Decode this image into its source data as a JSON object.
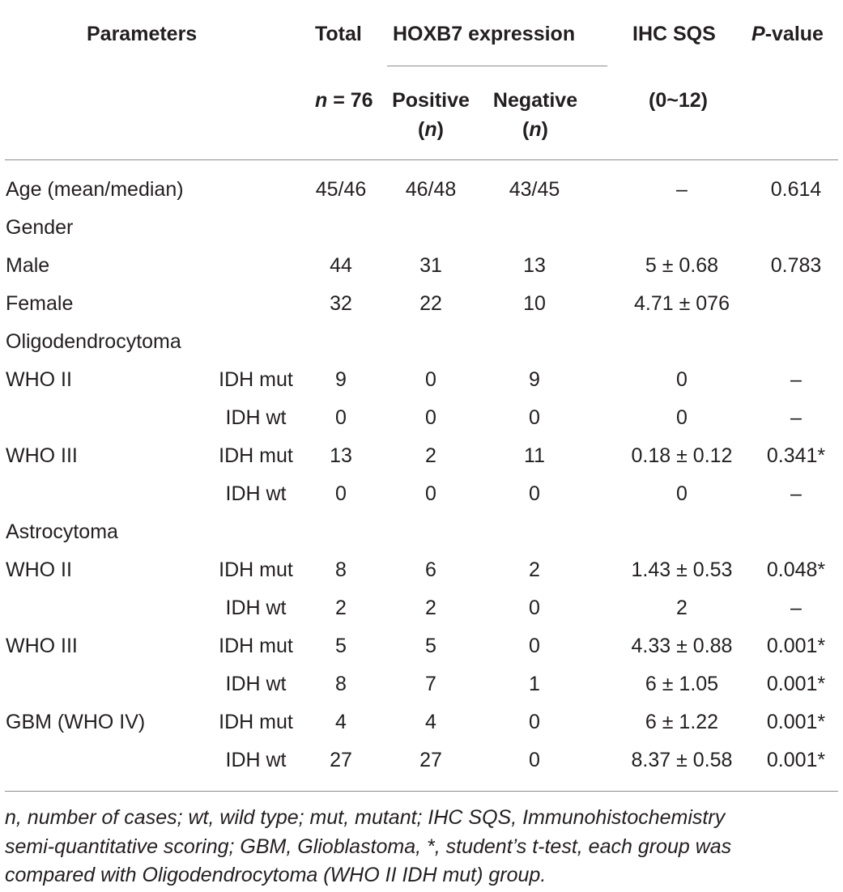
{
  "header": {
    "parameters": "Parameters",
    "total": "Total",
    "hoxb7": "HOXB7 expression",
    "ihc_sqs": "IHC SQS",
    "p_italic": "P",
    "p_rest": "-value",
    "n_italic": "n",
    "n_rest": " = 76",
    "positive": "Positive",
    "negative": "Negative",
    "paren_open": "(",
    "paren_close": ")",
    "pos_n": "n",
    "neg_n": "n",
    "range": "(0~12)"
  },
  "rows": [
    {
      "param": "Age (mean/median)",
      "sub": "",
      "total": "45/46",
      "pos": "46/48",
      "neg": "43/45",
      "ihc": "–",
      "p": "0.614"
    },
    {
      "param": "Gender",
      "sub": "",
      "total": "",
      "pos": "",
      "neg": "",
      "ihc": "",
      "p": ""
    },
    {
      "param": "Male",
      "sub": "",
      "total": "44",
      "pos": "31",
      "neg": "13",
      "ihc": "5 ± 0.68",
      "p": "0.783"
    },
    {
      "param": "Female",
      "sub": "",
      "total": "32",
      "pos": "22",
      "neg": "10",
      "ihc": "4.71 ± 076",
      "p": ""
    },
    {
      "param": "Oligodendrocytoma",
      "sub": "",
      "total": "",
      "pos": "",
      "neg": "",
      "ihc": "",
      "p": ""
    },
    {
      "param": "WHO II",
      "sub": "IDH mut",
      "total": "9",
      "pos": "0",
      "neg": "9",
      "ihc": "0",
      "p": "–"
    },
    {
      "param": "",
      "sub": "IDH wt",
      "total": "0",
      "pos": "0",
      "neg": "0",
      "ihc": "0",
      "p": "–"
    },
    {
      "param": "WHO III",
      "sub": "IDH mut",
      "total": "13",
      "pos": "2",
      "neg": "11",
      "ihc": "0.18 ± 0.12",
      "p": "0.341*"
    },
    {
      "param": "",
      "sub": "IDH wt",
      "total": "0",
      "pos": "0",
      "neg": "0",
      "ihc": "0",
      "p": "–"
    },
    {
      "param": "Astrocytoma",
      "sub": "",
      "total": "",
      "pos": "",
      "neg": "",
      "ihc": "",
      "p": ""
    },
    {
      "param": "WHO II",
      "sub": "IDH mut",
      "total": "8",
      "pos": "6",
      "neg": "2",
      "ihc": "1.43 ± 0.53",
      "p": "0.048*"
    },
    {
      "param": "",
      "sub": "IDH wt",
      "total": "2",
      "pos": "2",
      "neg": "0",
      "ihc": "2",
      "p": "–"
    },
    {
      "param": "WHO III",
      "sub": "IDH mut",
      "total": "5",
      "pos": "5",
      "neg": "0",
      "ihc": "4.33 ± 0.88",
      "p": "0.001*"
    },
    {
      "param": "",
      "sub": "IDH wt",
      "total": "8",
      "pos": "7",
      "neg": "1",
      "ihc": "6 ± 1.05",
      "p": "0.001*"
    },
    {
      "param": "GBM (WHO IV)",
      "sub": "IDH mut",
      "total": "4",
      "pos": "4",
      "neg": "0",
      "ihc": "6 ± 1.22",
      "p": "0.001*"
    },
    {
      "param": "",
      "sub": "IDH wt",
      "total": "27",
      "pos": "27",
      "neg": "0",
      "ihc": "8.37 ± 0.58",
      "p": "0.001*"
    }
  ],
  "footnote": {
    "line1": "n, number of cases; wt, wild type; mut, mutant; IHC SQS, Immunohistochemistry",
    "line2": "semi-quantitative scoring; GBM, Glioblastoma, *, student’s t-test, each group was",
    "line3": "compared with Oligodendrocytoma (WHO II IDH mut) group."
  },
  "colors": {
    "text": "#231f20",
    "rule": "#8c8c8c",
    "background": "#ffffff"
  }
}
